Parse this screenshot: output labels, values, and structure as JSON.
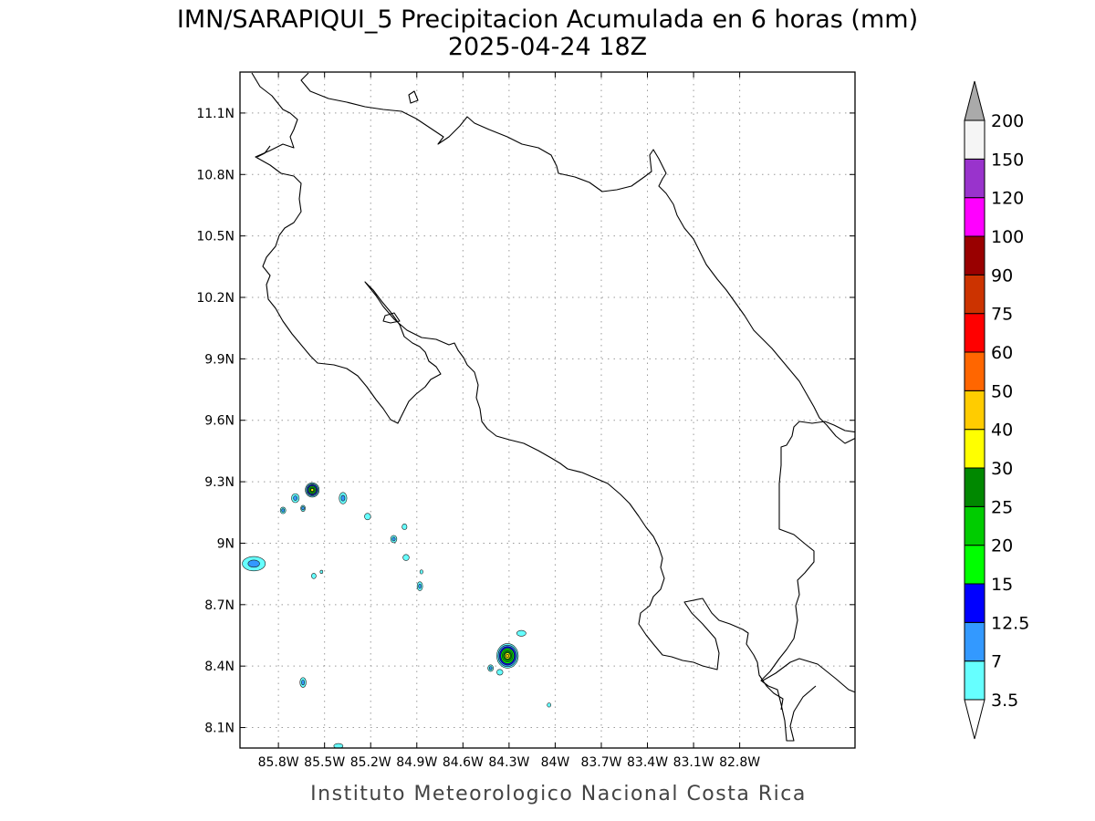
{
  "title": {
    "line1": "IMN/SARAPIQUI_5 Precipitacion Acumulada en 6 horas (mm)",
    "line2": "2025-04-24 18Z"
  },
  "footer": "Instituto Meteorologico Nacional Costa Rica",
  "map": {
    "lon_range": [
      -86.05,
      -82.05
    ],
    "lat_range": [
      8.0,
      11.3
    ],
    "x_ticks": [
      {
        "lon": -85.8,
        "label": "85.8W"
      },
      {
        "lon": -85.5,
        "label": "85.5W"
      },
      {
        "lon": -85.2,
        "label": "85.2W"
      },
      {
        "lon": -84.9,
        "label": "84.9W"
      },
      {
        "lon": -84.6,
        "label": "84.6W"
      },
      {
        "lon": -84.3,
        "label": "84.3W"
      },
      {
        "lon": -84.0,
        "label": "84W"
      },
      {
        "lon": -83.7,
        "label": "83.7W"
      },
      {
        "lon": -83.4,
        "label": "83.4W"
      },
      {
        "lon": -83.1,
        "label": "83.1W"
      },
      {
        "lon": -82.8,
        "label": "82.8W"
      }
    ],
    "y_ticks": [
      {
        "lat": 11.1,
        "label": "11.1N"
      },
      {
        "lat": 10.8,
        "label": "10.8N"
      },
      {
        "lat": 10.5,
        "label": "10.5N"
      },
      {
        "lat": 10.2,
        "label": "10.2N"
      },
      {
        "lat": 9.9,
        "label": "9.9N"
      },
      {
        "lat": 9.6,
        "label": "9.6N"
      },
      {
        "lat": 9.3,
        "label": "9.3N"
      },
      {
        "lat": 9.0,
        "label": "9N"
      },
      {
        "lat": 8.7,
        "label": "8.7N"
      },
      {
        "lat": 8.4,
        "label": "8.4N"
      },
      {
        "lat": 8.1,
        "label": "8.1N"
      }
    ],
    "grid": true
  },
  "colorbar": {
    "levels": [
      "3.5",
      "7",
      "12.5",
      "15",
      "20",
      "25",
      "30",
      "40",
      "50",
      "60",
      "75",
      "90",
      "100",
      "120",
      "150",
      "200"
    ],
    "colors": [
      "#66ffff",
      "#3399ff",
      "#0000ff",
      "#00ff00",
      "#00cc00",
      "#008800",
      "#ffff00",
      "#ffcc00",
      "#ff6600",
      "#ff0000",
      "#cc3300",
      "#990000",
      "#ff00ff",
      "#9933cc",
      "#f5f5f5"
    ],
    "below_color": "#ffffff",
    "above_color": "#aaaaaa"
  },
  "precip_cells": [
    {
      "lon": -85.58,
      "lat": 9.26,
      "rx": 0.045,
      "ry": 0.035,
      "peak": "30"
    },
    {
      "lon": -85.69,
      "lat": 9.22,
      "rx": 0.025,
      "ry": 0.022,
      "peak": "7"
    },
    {
      "lon": -85.64,
      "lat": 9.17,
      "rx": 0.015,
      "ry": 0.015,
      "peak": "7"
    },
    {
      "lon": -85.77,
      "lat": 9.16,
      "rx": 0.018,
      "ry": 0.016,
      "peak": "7"
    },
    {
      "lon": -85.38,
      "lat": 9.22,
      "rx": 0.025,
      "ry": 0.028,
      "peak": "7"
    },
    {
      "lon": -85.22,
      "lat": 9.13,
      "rx": 0.02,
      "ry": 0.016,
      "peak": "3.5"
    },
    {
      "lon": -85.05,
      "lat": 9.02,
      "rx": 0.02,
      "ry": 0.018,
      "peak": "7"
    },
    {
      "lon": -84.98,
      "lat": 9.08,
      "rx": 0.016,
      "ry": 0.014,
      "peak": "3.5"
    },
    {
      "lon": -84.97,
      "lat": 8.93,
      "rx": 0.02,
      "ry": 0.015,
      "peak": "3.5"
    },
    {
      "lon": -84.88,
      "lat": 8.79,
      "rx": 0.018,
      "ry": 0.022,
      "peak": "7"
    },
    {
      "lon": -84.87,
      "lat": 8.86,
      "rx": 0.01,
      "ry": 0.01,
      "peak": "3.5"
    },
    {
      "lon": -85.96,
      "lat": 8.9,
      "rx": 0.075,
      "ry": 0.035,
      "peak": "7"
    },
    {
      "lon": -85.57,
      "lat": 8.84,
      "rx": 0.015,
      "ry": 0.013,
      "peak": "3.5"
    },
    {
      "lon": -85.52,
      "lat": 8.86,
      "rx": 0.008,
      "ry": 0.008,
      "peak": "3.5"
    },
    {
      "lon": -85.64,
      "lat": 8.32,
      "rx": 0.02,
      "ry": 0.024,
      "peak": "7"
    },
    {
      "lon": -84.31,
      "lat": 8.45,
      "rx": 0.07,
      "ry": 0.06,
      "peak": "40"
    },
    {
      "lon": -84.42,
      "lat": 8.39,
      "rx": 0.018,
      "ry": 0.016,
      "peak": "7"
    },
    {
      "lon": -84.36,
      "lat": 8.37,
      "rx": 0.02,
      "ry": 0.014,
      "peak": "3.5"
    },
    {
      "lon": -84.22,
      "lat": 8.56,
      "rx": 0.03,
      "ry": 0.014,
      "peak": "3.5"
    },
    {
      "lon": -84.04,
      "lat": 8.21,
      "rx": 0.012,
      "ry": 0.01,
      "peak": "3.5"
    },
    {
      "lon": -85.41,
      "lat": 8.01,
      "rx": 0.03,
      "ry": 0.012,
      "peak": "3.5"
    }
  ]
}
